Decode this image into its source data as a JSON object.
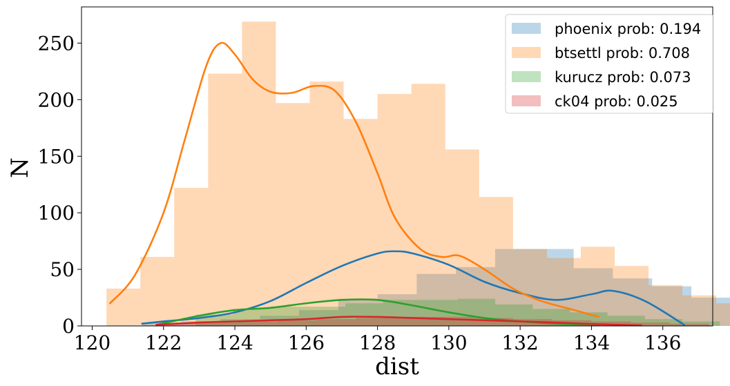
{
  "chart_data": {
    "type": "histogram",
    "title": "",
    "xlabel": "dist",
    "ylabel": "N",
    "xlim": [
      119.7,
      137.4
    ],
    "ylim": [
      0,
      282
    ],
    "xticks": [
      "120",
      "122",
      "124",
      "126",
      "128",
      "130",
      "132",
      "134",
      "136"
    ],
    "yticks": [
      "0",
      "50",
      "100",
      "150",
      "200",
      "250"
    ],
    "legend_position": "top-right",
    "grid": false,
    "series": [
      {
        "name": "phoenix prob: 0.194",
        "color": "#1f77b4",
        "bins": {
          "start": 121.4,
          "width": 1.1
        },
        "counts": [
          3,
          4,
          6,
          9,
          14,
          24,
          28,
          46,
          52,
          68,
          68,
          51,
          42,
          35,
          25,
          37,
          22,
          31,
          35,
          23
        ],
        "kde_x": [
          121.4,
          122,
          123,
          124,
          125,
          126,
          127,
          128,
          128.5,
          129,
          130,
          131,
          132,
          133,
          134,
          134.6,
          135.5,
          136.6
        ],
        "kde_y": [
          2,
          4,
          7,
          12,
          22,
          38,
          53,
          64,
          66,
          64,
          54,
          39,
          29,
          23,
          28,
          31,
          22,
          1
        ]
      },
      {
        "name": "btsettl prob: 0.708",
        "color": "#ff7f0e",
        "bins": {
          "start": 120.4,
          "width": 0.95
        },
        "counts": [
          33,
          61,
          122,
          223,
          269,
          197,
          216,
          183,
          205,
          214,
          156,
          114,
          68,
          60,
          70,
          53,
          36,
          27,
          20,
          12
        ],
        "kde_x": [
          120.5,
          121.2,
          122,
          122.6,
          123.2,
          123.6,
          124,
          124.5,
          125,
          125.6,
          126.2,
          126.8,
          127.4,
          128,
          128.5,
          129.2,
          129.8,
          130.3,
          131,
          131.8,
          132.6,
          133.4,
          134.2
        ],
        "kde_y": [
          20,
          45,
          100,
          165,
          230,
          250,
          240,
          218,
          207,
          206,
          212,
          208,
          180,
          135,
          95,
          68,
          61,
          62,
          50,
          33,
          22,
          15,
          8
        ]
      },
      {
        "name": "kurucz prob: 0.073",
        "color": "#2ca02c",
        "bins": {
          "start": 122.9,
          "width": 1.05
        },
        "counts": [
          10,
          15,
          17,
          17,
          20,
          23,
          23,
          24,
          19,
          15,
          12,
          9,
          6,
          4
        ],
        "kde_x": [
          121.8,
          123,
          124,
          125,
          126,
          127,
          128,
          129,
          130,
          131,
          132,
          133,
          134.2
        ],
        "kde_y": [
          1,
          9,
          14,
          16,
          20,
          23,
          23,
          18,
          12,
          7,
          4,
          2,
          1
        ]
      },
      {
        "name": "ck04 prob: 0.025",
        "color": "#d62728",
        "bins": {
          "start": 121.9,
          "width": 1.1
        },
        "counts": [
          2,
          3,
          4,
          5,
          6,
          7,
          8,
          8,
          7,
          6,
          5,
          4,
          3,
          2
        ],
        "kde_x": [
          121.8,
          123,
          124,
          125,
          126,
          127,
          128,
          129,
          130,
          131,
          132,
          133,
          134.2,
          135.4
        ],
        "kde_y": [
          1,
          3,
          4,
          5,
          6,
          8,
          8,
          7,
          6,
          5,
          4,
          3,
          1.5,
          0.5
        ]
      }
    ]
  }
}
